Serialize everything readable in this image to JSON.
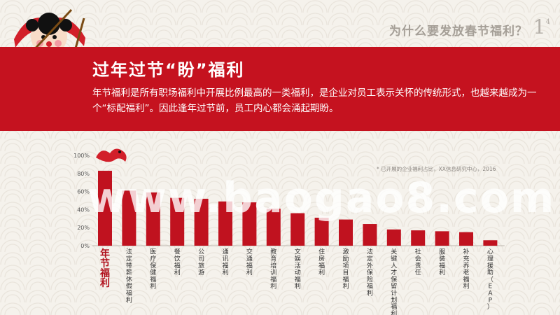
{
  "header": {
    "title": "为什么要发放春节福利？",
    "page_number": "1",
    "page_total": "4"
  },
  "banner": {
    "title": "过年过节“盼”福利",
    "text": "年节福利是所有职场福利中开展比例最高的一类福利，是企业对员工表示关怀的传统形式，也越来越成为一个“标配福利”。因此逢年过节前，员工内心都会涌起期盼。"
  },
  "watermark": "www.baogao8.com",
  "source_note": "* 已开展的企业福利占比，XX信息研究中心，2016",
  "colors": {
    "banner": "#c5121f",
    "bar": "#c0121f",
    "highlight_label": "#b0101c"
  },
  "chart_data": {
    "type": "bar",
    "categories": [
      "年节福利",
      "法定带薪休假福利",
      "医疗保健福利",
      "餐饮福利",
      "公司旅游",
      "通讯福利",
      "交通福利",
      "教育培训福利",
      "文娱活动福利",
      "住房福利",
      "激励项目福利",
      "法定外保险福利",
      "关键人才保留计划福利",
      "社会责任",
      "服装福利",
      "补充养老福利",
      "心理援助（EAP）"
    ],
    "values": [
      83,
      61,
      59,
      53,
      52,
      49,
      48,
      41,
      36,
      31,
      29,
      24,
      18,
      17,
      16,
      15,
      6
    ],
    "yticks": [
      "0%",
      "20%",
      "40%",
      "60%",
      "80%",
      "100%"
    ],
    "ylim": [
      0,
      100
    ],
    "title": "",
    "xlabel": "",
    "ylabel": "",
    "grid": false
  }
}
